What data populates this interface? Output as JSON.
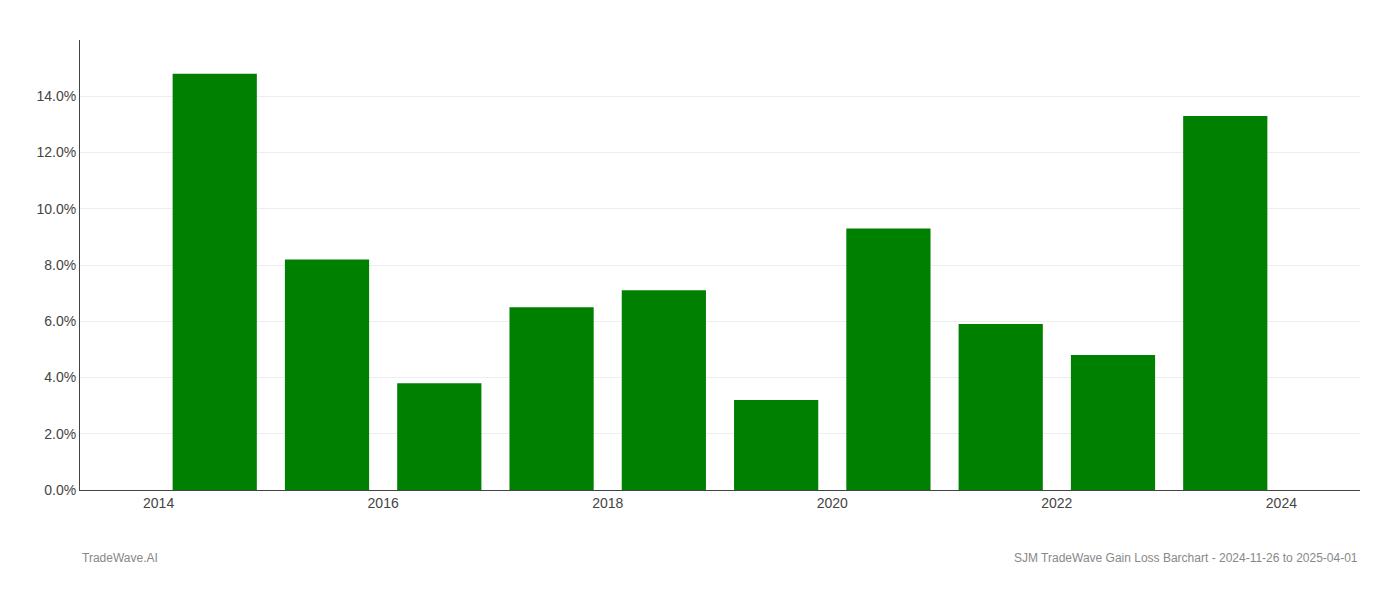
{
  "chart_data": {
    "type": "bar",
    "x": [
      2014,
      2015,
      2016,
      2017,
      2018,
      2019,
      2020,
      2021,
      2022,
      2023
    ],
    "values": [
      0.148,
      0.082,
      0.038,
      0.065,
      0.071,
      0.032,
      0.093,
      0.059,
      0.048,
      0.133
    ],
    "color": "#008000",
    "xlim": [
      2012.8,
      2024.2
    ],
    "xticks": [
      {
        "value": 2013.5,
        "label": "2014"
      },
      {
        "value": 2015.5,
        "label": "2016"
      },
      {
        "value": 2017.5,
        "label": "2018"
      },
      {
        "value": 2019.5,
        "label": "2020"
      },
      {
        "value": 2021.5,
        "label": "2022"
      },
      {
        "value": 2023.5,
        "label": "2024"
      }
    ],
    "ylim": [
      0,
      0.16
    ],
    "yticks": [
      {
        "value": 0.0,
        "label": "0.0%"
      },
      {
        "value": 0.02,
        "label": "2.0%"
      },
      {
        "value": 0.04,
        "label": "4.0%"
      },
      {
        "value": 0.06,
        "label": "6.0%"
      },
      {
        "value": 0.08,
        "label": "8.0%"
      },
      {
        "value": 0.1,
        "label": "10.0%"
      },
      {
        "value": 0.12,
        "label": "12.0%"
      },
      {
        "value": 0.14,
        "label": "14.0%"
      }
    ],
    "grid": true,
    "annotations": [
      "TradeWave.AI",
      "SJM TradeWave Gain Loss Barchart - 2024-11-26 to 2025-04-01"
    ]
  }
}
